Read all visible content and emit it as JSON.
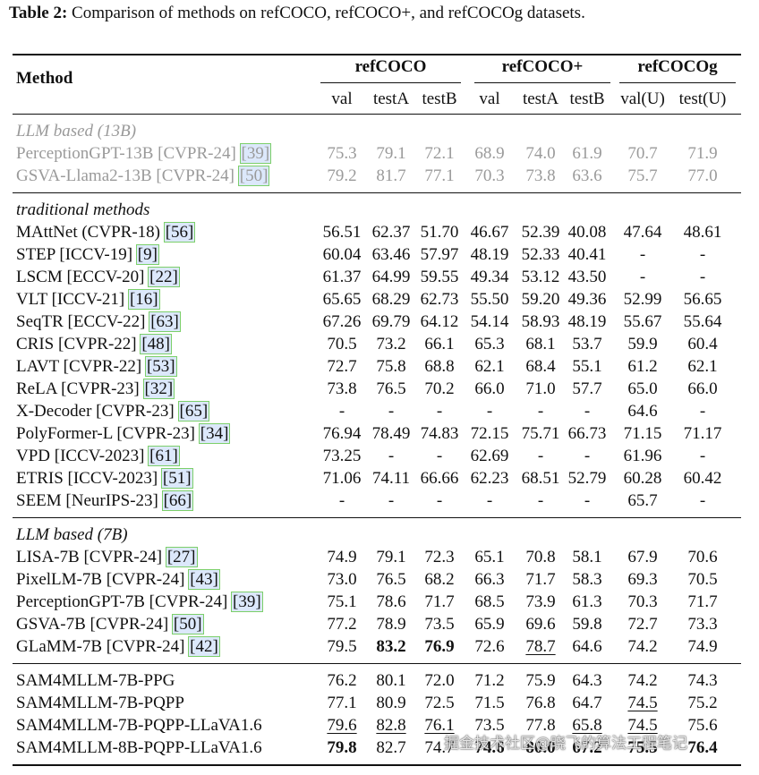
{
  "caption": {
    "label": "Table 2:",
    "text": "Comparison of methods on refCOCO, refCOCO+, and refCOCOg datasets."
  },
  "header": {
    "method": "Method",
    "groups": [
      {
        "name": "refCOCO",
        "span": [
          0,
          2
        ]
      },
      {
        "name": "refCOCO+",
        "span": [
          3,
          5
        ]
      },
      {
        "name": "refCOCOg",
        "span": [
          6,
          7
        ]
      }
    ],
    "columns": [
      "val",
      "testA",
      "testB",
      "val",
      "testA",
      "testB",
      "val(U)",
      "test(U)"
    ]
  },
  "sections": [
    {
      "title": "LLM based (13B)",
      "muted": true,
      "rows": [
        {
          "method": "PerceptionGPT-13B [CVPR-24]",
          "cite": "[39]",
          "cells": [
            "75.3",
            "79.1",
            "72.1",
            "68.9",
            "74.0",
            "61.9",
            "70.7",
            "71.9"
          ]
        },
        {
          "method": "GSVA-Llama2-13B [CVPR-24]",
          "cite": "[50]",
          "cells": [
            "79.2",
            "81.7",
            "77.1",
            "70.3",
            "73.8",
            "63.6",
            "75.7",
            "77.0"
          ]
        }
      ]
    },
    {
      "title": "traditional methods",
      "rows": [
        {
          "method": "MAttNet (CVPR-18)",
          "cite": "[56]",
          "cells": [
            "56.51",
            "62.37",
            "51.70",
            "46.67",
            "52.39",
            "40.08",
            "47.64",
            "48.61"
          ]
        },
        {
          "method": "STEP [ICCV-19]",
          "cite": "[9]",
          "cells": [
            "60.04",
            "63.46",
            "57.97",
            "48.19",
            "52.33",
            "40.41",
            "-",
            "-"
          ]
        },
        {
          "method": "LSCM [ECCV-20]",
          "cite": "[22]",
          "cells": [
            "61.37",
            "64.99",
            "59.55",
            "49.34",
            "53.12",
            "43.50",
            "-",
            "-"
          ]
        },
        {
          "method": "VLT [ICCV-21]",
          "cite": "[16]",
          "cells": [
            "65.65",
            "68.29",
            "62.73",
            "55.50",
            "59.20",
            "49.36",
            "52.99",
            "56.65"
          ]
        },
        {
          "method": "SeqTR [ECCV-22]",
          "cite": "[63]",
          "cells": [
            "67.26",
            "69.79",
            "64.12",
            "54.14",
            "58.93",
            "48.19",
            "55.67",
            "55.64"
          ]
        },
        {
          "method": "CRIS [CVPR-22]",
          "cite": "[48]",
          "cells": [
            "70.5",
            "73.2",
            "66.1",
            "65.3",
            "68.1",
            "53.7",
            "59.9",
            "60.4"
          ]
        },
        {
          "method": "LAVT [CVPR-22]",
          "cite": "[53]",
          "cells": [
            "72.7",
            "75.8",
            "68.8",
            "62.1",
            "68.4",
            "55.1",
            "61.2",
            "62.1"
          ]
        },
        {
          "method": "ReLA [CVPR-23]",
          "cite": "[32]",
          "cells": [
            "73.8",
            "76.5",
            "70.2",
            "66.0",
            "71.0",
            "57.7",
            "65.0",
            "66.0"
          ]
        },
        {
          "method": "X-Decoder [CVPR-23]",
          "cite": "[65]",
          "cells": [
            "-",
            "-",
            "-",
            "-",
            "-",
            "-",
            "64.6",
            "-"
          ]
        },
        {
          "method": "PolyFormer-L [CVPR-23]",
          "cite": "[34]",
          "cells": [
            "76.94",
            "78.49",
            "74.83",
            "72.15",
            "75.71",
            "66.73",
            "71.15",
            "71.17"
          ]
        },
        {
          "method": "VPD [ICCV-2023]",
          "cite": "[61]",
          "cells": [
            "73.25",
            "-",
            "-",
            "62.69",
            "-",
            "-",
            "61.96",
            "-"
          ]
        },
        {
          "method": "ETRIS [ICCV-2023]",
          "cite": "[51]",
          "cells": [
            "71.06",
            "74.11",
            "66.66",
            "62.23",
            "68.51",
            "52.79",
            "60.28",
            "60.42"
          ]
        },
        {
          "method": "SEEM [NeurIPS-23]",
          "cite": "[66]",
          "cells": [
            "-",
            "-",
            "-",
            "-",
            "-",
            "-",
            "65.7",
            "-"
          ]
        }
      ]
    },
    {
      "title": "LLM based (7B)",
      "rows": [
        {
          "method": "LISA-7B [CVPR-24]",
          "cite": "[27]",
          "cells": [
            "74.9",
            "79.1",
            "72.3",
            "65.1",
            "70.8",
            "58.1",
            "67.9",
            "70.6"
          ]
        },
        {
          "method": "PixelLM-7B [CVPR-24]",
          "cite": "[43]",
          "cells": [
            "73.0",
            "76.5",
            "68.2",
            "66.3",
            "71.7",
            "58.3",
            "69.3",
            "70.5"
          ]
        },
        {
          "method": "PerceptionGPT-7B [CVPR-24]",
          "cite": "[39]",
          "cells": [
            "75.1",
            "78.6",
            "71.7",
            "68.5",
            "73.9",
            "61.3",
            "70.3",
            "71.7"
          ]
        },
        {
          "method": "GSVA-7B [CVPR-24]",
          "cite": "[50]",
          "cells": [
            "77.2",
            "78.9",
            "73.5",
            "65.9",
            "69.6",
            "59.8",
            "72.7",
            "73.3"
          ]
        },
        {
          "method": "GLaMM-7B [CVPR-24]",
          "cite": "[42]",
          "cells": [
            "79.5",
            "83.2",
            "76.9",
            "72.6",
            "78.7",
            "64.6",
            "74.2",
            "74.9"
          ],
          "bold": [
            1,
            2
          ],
          "underline": [
            4
          ]
        }
      ]
    },
    {
      "rows": [
        {
          "method": "SAM4MLLM-7B-PPG",
          "cells": [
            "76.2",
            "80.1",
            "72.0",
            "71.2",
            "75.9",
            "64.3",
            "74.2",
            "74.3"
          ]
        },
        {
          "method": "SAM4MLLM-7B-PQPP",
          "cells": [
            "77.1",
            "80.9",
            "72.5",
            "71.5",
            "76.8",
            "64.7",
            "74.5",
            "75.2"
          ],
          "underline": [
            6
          ]
        },
        {
          "method": "SAM4MLLM-7B-PQPP-LLaVA1.6",
          "cells": [
            "79.6",
            "82.8",
            "76.1",
            "73.5",
            "77.8",
            "65.8",
            "74.5",
            "75.6"
          ],
          "underline": [
            0,
            1,
            2,
            5,
            6
          ]
        },
        {
          "method": "SAM4MLLM-8B-PQPP-LLaVA1.6",
          "cells": [
            "79.8",
            "82.7",
            "74.7",
            "74.6",
            "80.0",
            "67.2",
            "75.5",
            "76.4"
          ],
          "bold": [
            0,
            3,
            4,
            5,
            6,
            7
          ]
        }
      ]
    }
  ],
  "watermark": "掘金技术社区@晓飞的算法工程笔记"
}
